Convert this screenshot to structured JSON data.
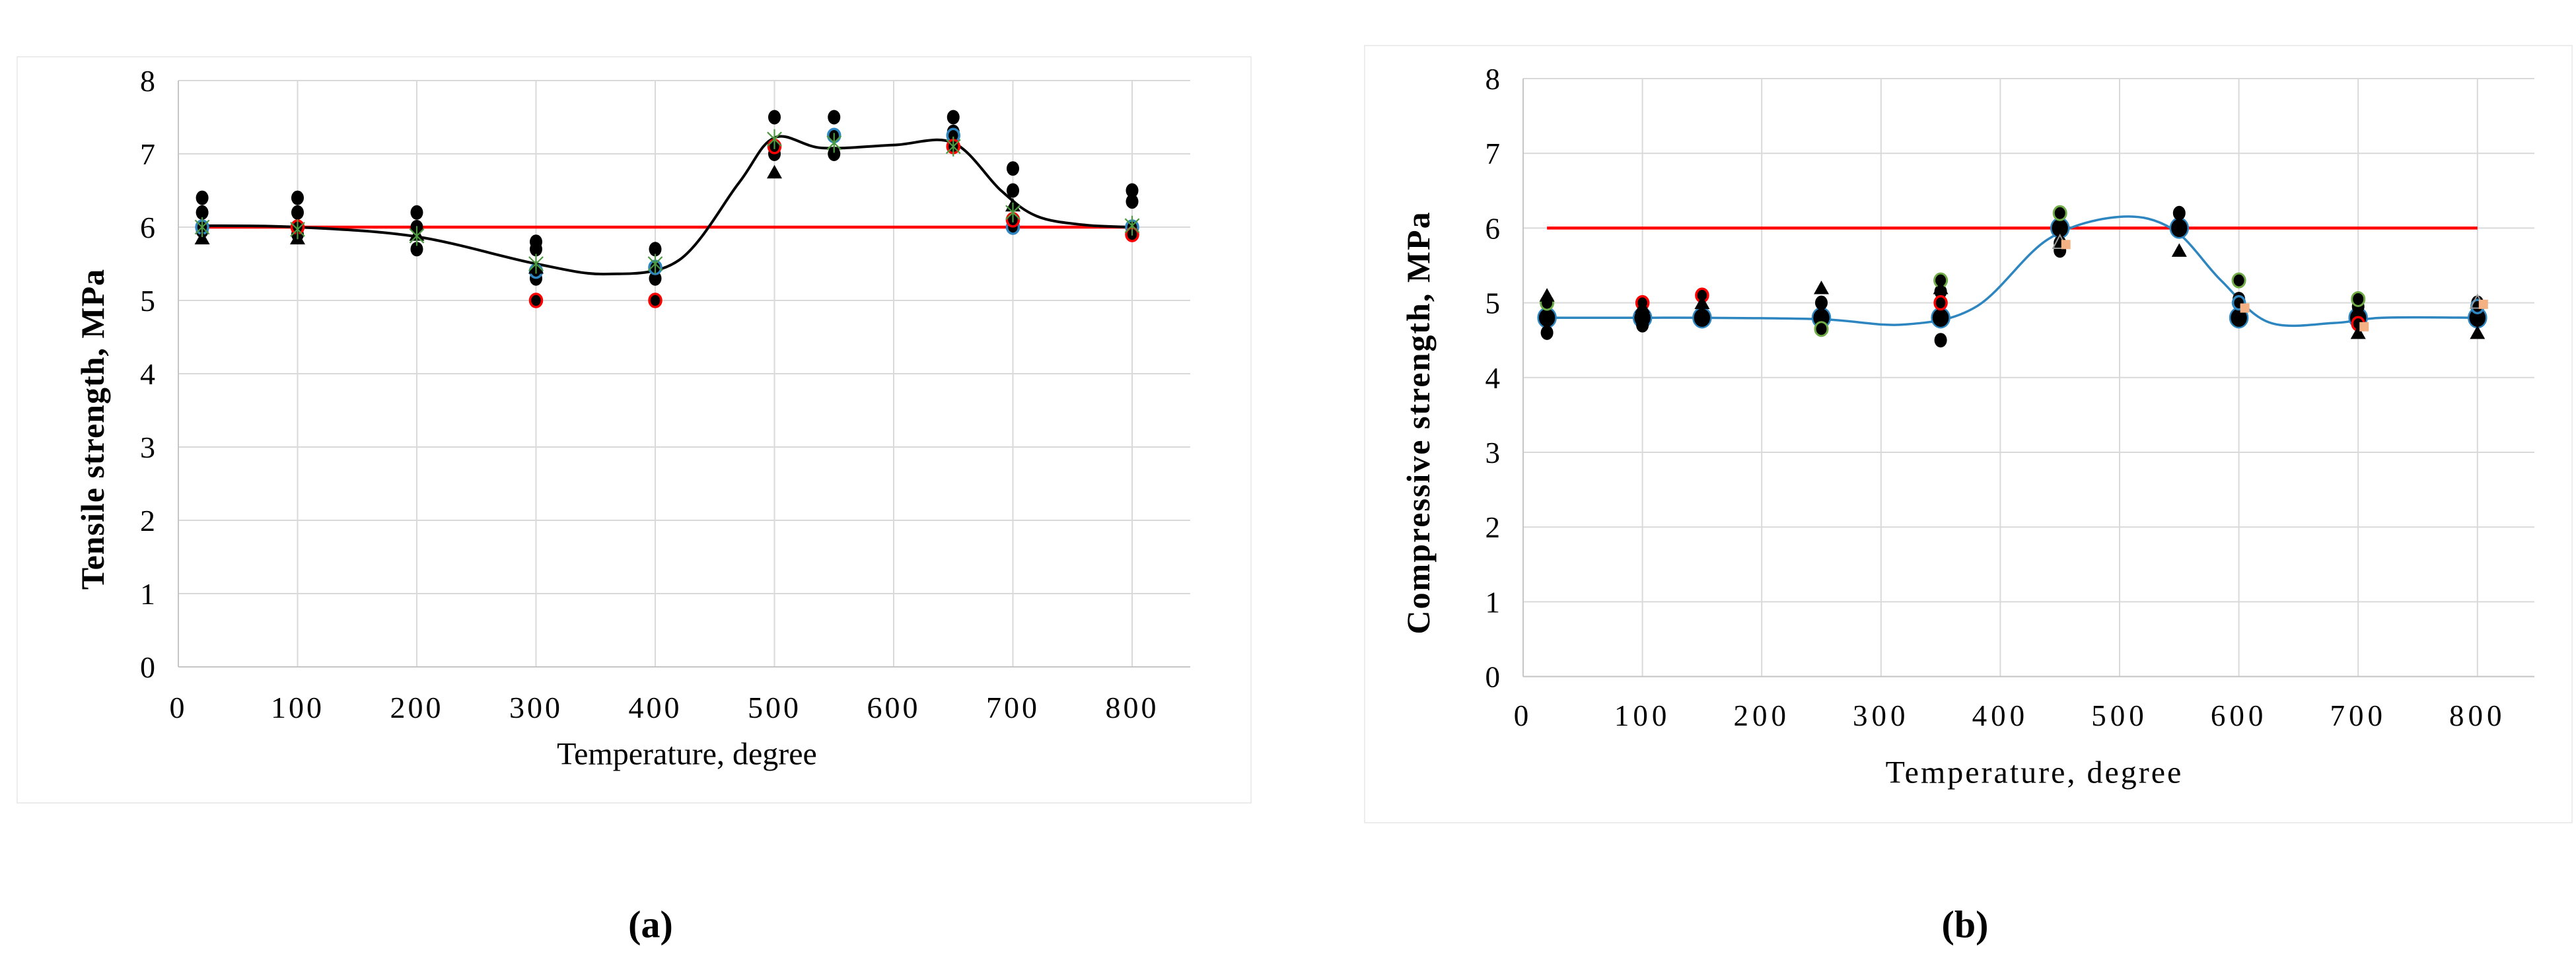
{
  "page": {
    "caption_a": "(a)",
    "caption_b": "(b)"
  },
  "colors": {
    "grid": "#d9d9d9",
    "axis": "#c6c6c6",
    "frame": "#ececec",
    "reference_red": "#ff0000",
    "trend_black": "#000000",
    "trend_blue": "#2e86c1",
    "marker_black": "#000000",
    "ring_red": "#ff0000",
    "ring_blue": "#2e86c1",
    "ring_green": "#70ad47",
    "star_green": "#4c9a3f",
    "square_orange": "#f4b183",
    "triangle_outline": "#9a9a9a"
  },
  "chart_data": [
    {
      "id": "a",
      "type": "scatter",
      "caption": "(a)",
      "xlabel": "Temperature, degree",
      "ylabel": "Tensile strength, MPa",
      "xlim": [
        0,
        800
      ],
      "ylim": [
        0,
        8
      ],
      "xticks": [
        0,
        100,
        200,
        300,
        400,
        500,
        600,
        700,
        800
      ],
      "yticks": [
        0,
        1,
        2,
        3,
        4,
        5,
        6,
        7,
        8
      ],
      "grid": true,
      "legend": "none",
      "reference_line": {
        "y": 6,
        "x_start": 20,
        "x_end": 800
      },
      "trend_line": {
        "points": [
          [
            20,
            6.02
          ],
          [
            100,
            6.0
          ],
          [
            200,
            5.87
          ],
          [
            300,
            5.5
          ],
          [
            360,
            5.36
          ],
          [
            420,
            5.55
          ],
          [
            470,
            6.6
          ],
          [
            500,
            7.22
          ],
          [
            540,
            7.08
          ],
          [
            600,
            7.12
          ],
          [
            650,
            7.15
          ],
          [
            690,
            6.5
          ],
          [
            720,
            6.15
          ],
          [
            760,
            6.03
          ],
          [
            800,
            6.0
          ]
        ]
      },
      "series": [
        {
          "name": "specimen-circle",
          "marker": "circle",
          "points": [
            [
              20,
              6.4
            ],
            [
              20,
              6.2
            ],
            [
              20,
              5.95
            ],
            [
              100,
              6.4
            ],
            [
              100,
              6.2
            ],
            [
              100,
              5.9
            ],
            [
              200,
              6.2
            ],
            [
              200,
              6.0
            ],
            [
              200,
              5.7
            ],
            [
              300,
              5.8
            ],
            [
              300,
              5.7
            ],
            [
              300,
              5.3
            ],
            [
              400,
              5.7
            ],
            [
              400,
              5.3
            ],
            [
              500,
              7.5
            ],
            [
              500,
              7.0
            ],
            [
              550,
              7.5
            ],
            [
              550,
              7.0
            ],
            [
              650,
              7.5
            ],
            [
              650,
              7.3
            ],
            [
              700,
              6.8
            ],
            [
              700,
              6.5
            ],
            [
              800,
              6.5
            ],
            [
              800,
              6.35
            ],
            [
              800,
              5.95
            ]
          ]
        },
        {
          "name": "specimen-ring-blue",
          "marker": "ring-blue",
          "points": [
            [
              20,
              6.0
            ],
            [
              300,
              5.4
            ],
            [
              400,
              5.45
            ],
            [
              550,
              7.25
            ],
            [
              650,
              7.25
            ],
            [
              700,
              6.0
            ],
            [
              800,
              6.0
            ]
          ]
        },
        {
          "name": "specimen-ring-red",
          "marker": "ring-red",
          "points": [
            [
              100,
              6.0
            ],
            [
              300,
              5.0
            ],
            [
              400,
              5.0
            ],
            [
              500,
              7.1
            ],
            [
              650,
              7.1
            ],
            [
              700,
              6.1
            ],
            [
              800,
              5.9
            ]
          ]
        },
        {
          "name": "specimen-triangle",
          "marker": "triangle",
          "points": [
            [
              20,
              5.85
            ],
            [
              100,
              5.85
            ],
            [
              200,
              5.9
            ],
            [
              300,
              5.45
            ],
            [
              500,
              6.75
            ],
            [
              700,
              6.3
            ]
          ]
        },
        {
          "name": "specimen-star",
          "marker": "star",
          "points": [
            [
              20,
              6.0
            ],
            [
              100,
              5.97
            ],
            [
              200,
              5.88
            ],
            [
              300,
              5.5
            ],
            [
              400,
              5.5
            ],
            [
              500,
              7.2
            ],
            [
              550,
              7.15
            ],
            [
              650,
              7.1
            ],
            [
              700,
              6.2
            ],
            [
              800,
              6.02
            ]
          ]
        }
      ]
    },
    {
      "id": "b",
      "type": "scatter",
      "caption": "(b)",
      "xlabel": "Temperature, degree",
      "ylabel": "Compressive strength, MPa",
      "xlim": [
        0,
        800
      ],
      "ylim": [
        0,
        8
      ],
      "xticks": [
        0,
        100,
        200,
        300,
        400,
        500,
        600,
        700,
        800
      ],
      "yticks": [
        0,
        1,
        2,
        3,
        4,
        5,
        6,
        7,
        8
      ],
      "grid": true,
      "legend": "none",
      "reference_line": {
        "y": 6,
        "x_start": 20,
        "x_end": 800
      },
      "trend_line": {
        "points": [
          [
            20,
            4.8
          ],
          [
            100,
            4.8
          ],
          [
            150,
            4.8
          ],
          [
            250,
            4.78
          ],
          [
            320,
            4.71
          ],
          [
            380,
            4.95
          ],
          [
            440,
            5.85
          ],
          [
            500,
            6.15
          ],
          [
            545,
            5.98
          ],
          [
            585,
            5.3
          ],
          [
            625,
            4.74
          ],
          [
            680,
            4.73
          ],
          [
            720,
            4.8
          ],
          [
            800,
            4.8
          ]
        ]
      },
      "series": [
        {
          "name": "mean-circle-big",
          "marker": "circle-big",
          "points": [
            [
              20,
              4.8
            ],
            [
              100,
              4.8
            ],
            [
              150,
              4.8
            ],
            [
              250,
              4.8
            ],
            [
              350,
              4.8
            ],
            [
              450,
              6.0
            ],
            [
              550,
              6.0
            ],
            [
              600,
              4.8
            ],
            [
              700,
              4.8
            ],
            [
              800,
              4.8
            ]
          ]
        },
        {
          "name": "specimen-circle",
          "marker": "circle",
          "points": [
            [
              20,
              4.6
            ],
            [
              100,
              4.7
            ],
            [
              250,
              5.0
            ],
            [
              350,
              5.15
            ],
            [
              350,
              4.5
            ],
            [
              450,
              5.8
            ],
            [
              450,
              5.7
            ],
            [
              550,
              6.2
            ],
            [
              600,
              5.05
            ],
            [
              700,
              4.95
            ],
            [
              800,
              5.0
            ]
          ]
        },
        {
          "name": "specimen-ring-green",
          "marker": "ring-green",
          "points": [
            [
              20,
              5.0
            ],
            [
              250,
              4.65
            ],
            [
              350,
              5.3
            ],
            [
              450,
              6.2
            ],
            [
              600,
              5.3
            ],
            [
              700,
              5.05
            ]
          ]
        },
        {
          "name": "specimen-ring-red",
          "marker": "ring-red",
          "points": [
            [
              100,
              5.0
            ],
            [
              150,
              5.1
            ],
            [
              350,
              5.0
            ],
            [
              700,
              4.72
            ]
          ]
        },
        {
          "name": "specimen-ring-blue",
          "marker": "ring-blue",
          "points": [
            [
              600,
              5.0
            ],
            [
              800,
              4.95
            ]
          ]
        },
        {
          "name": "specimen-triangle",
          "marker": "triangle",
          "points": [
            [
              20,
              5.1
            ],
            [
              100,
              4.95
            ],
            [
              150,
              5.0
            ],
            [
              250,
              5.2
            ],
            [
              350,
              5.2
            ],
            [
              550,
              5.7
            ],
            [
              700,
              4.6
            ],
            [
              800,
              4.6
            ]
          ]
        },
        {
          "name": "specimen-triangle-outline",
          "marker": "triangle-outline",
          "points": [
            [
              450,
              5.8
            ],
            [
              800,
              5.0
            ]
          ]
        },
        {
          "name": "specimen-square-orange",
          "marker": "square",
          "points": [
            [
              450,
              5.78
            ],
            [
              600,
              4.93
            ],
            [
              700,
              4.68
            ],
            [
              800,
              4.98
            ]
          ]
        }
      ]
    }
  ]
}
